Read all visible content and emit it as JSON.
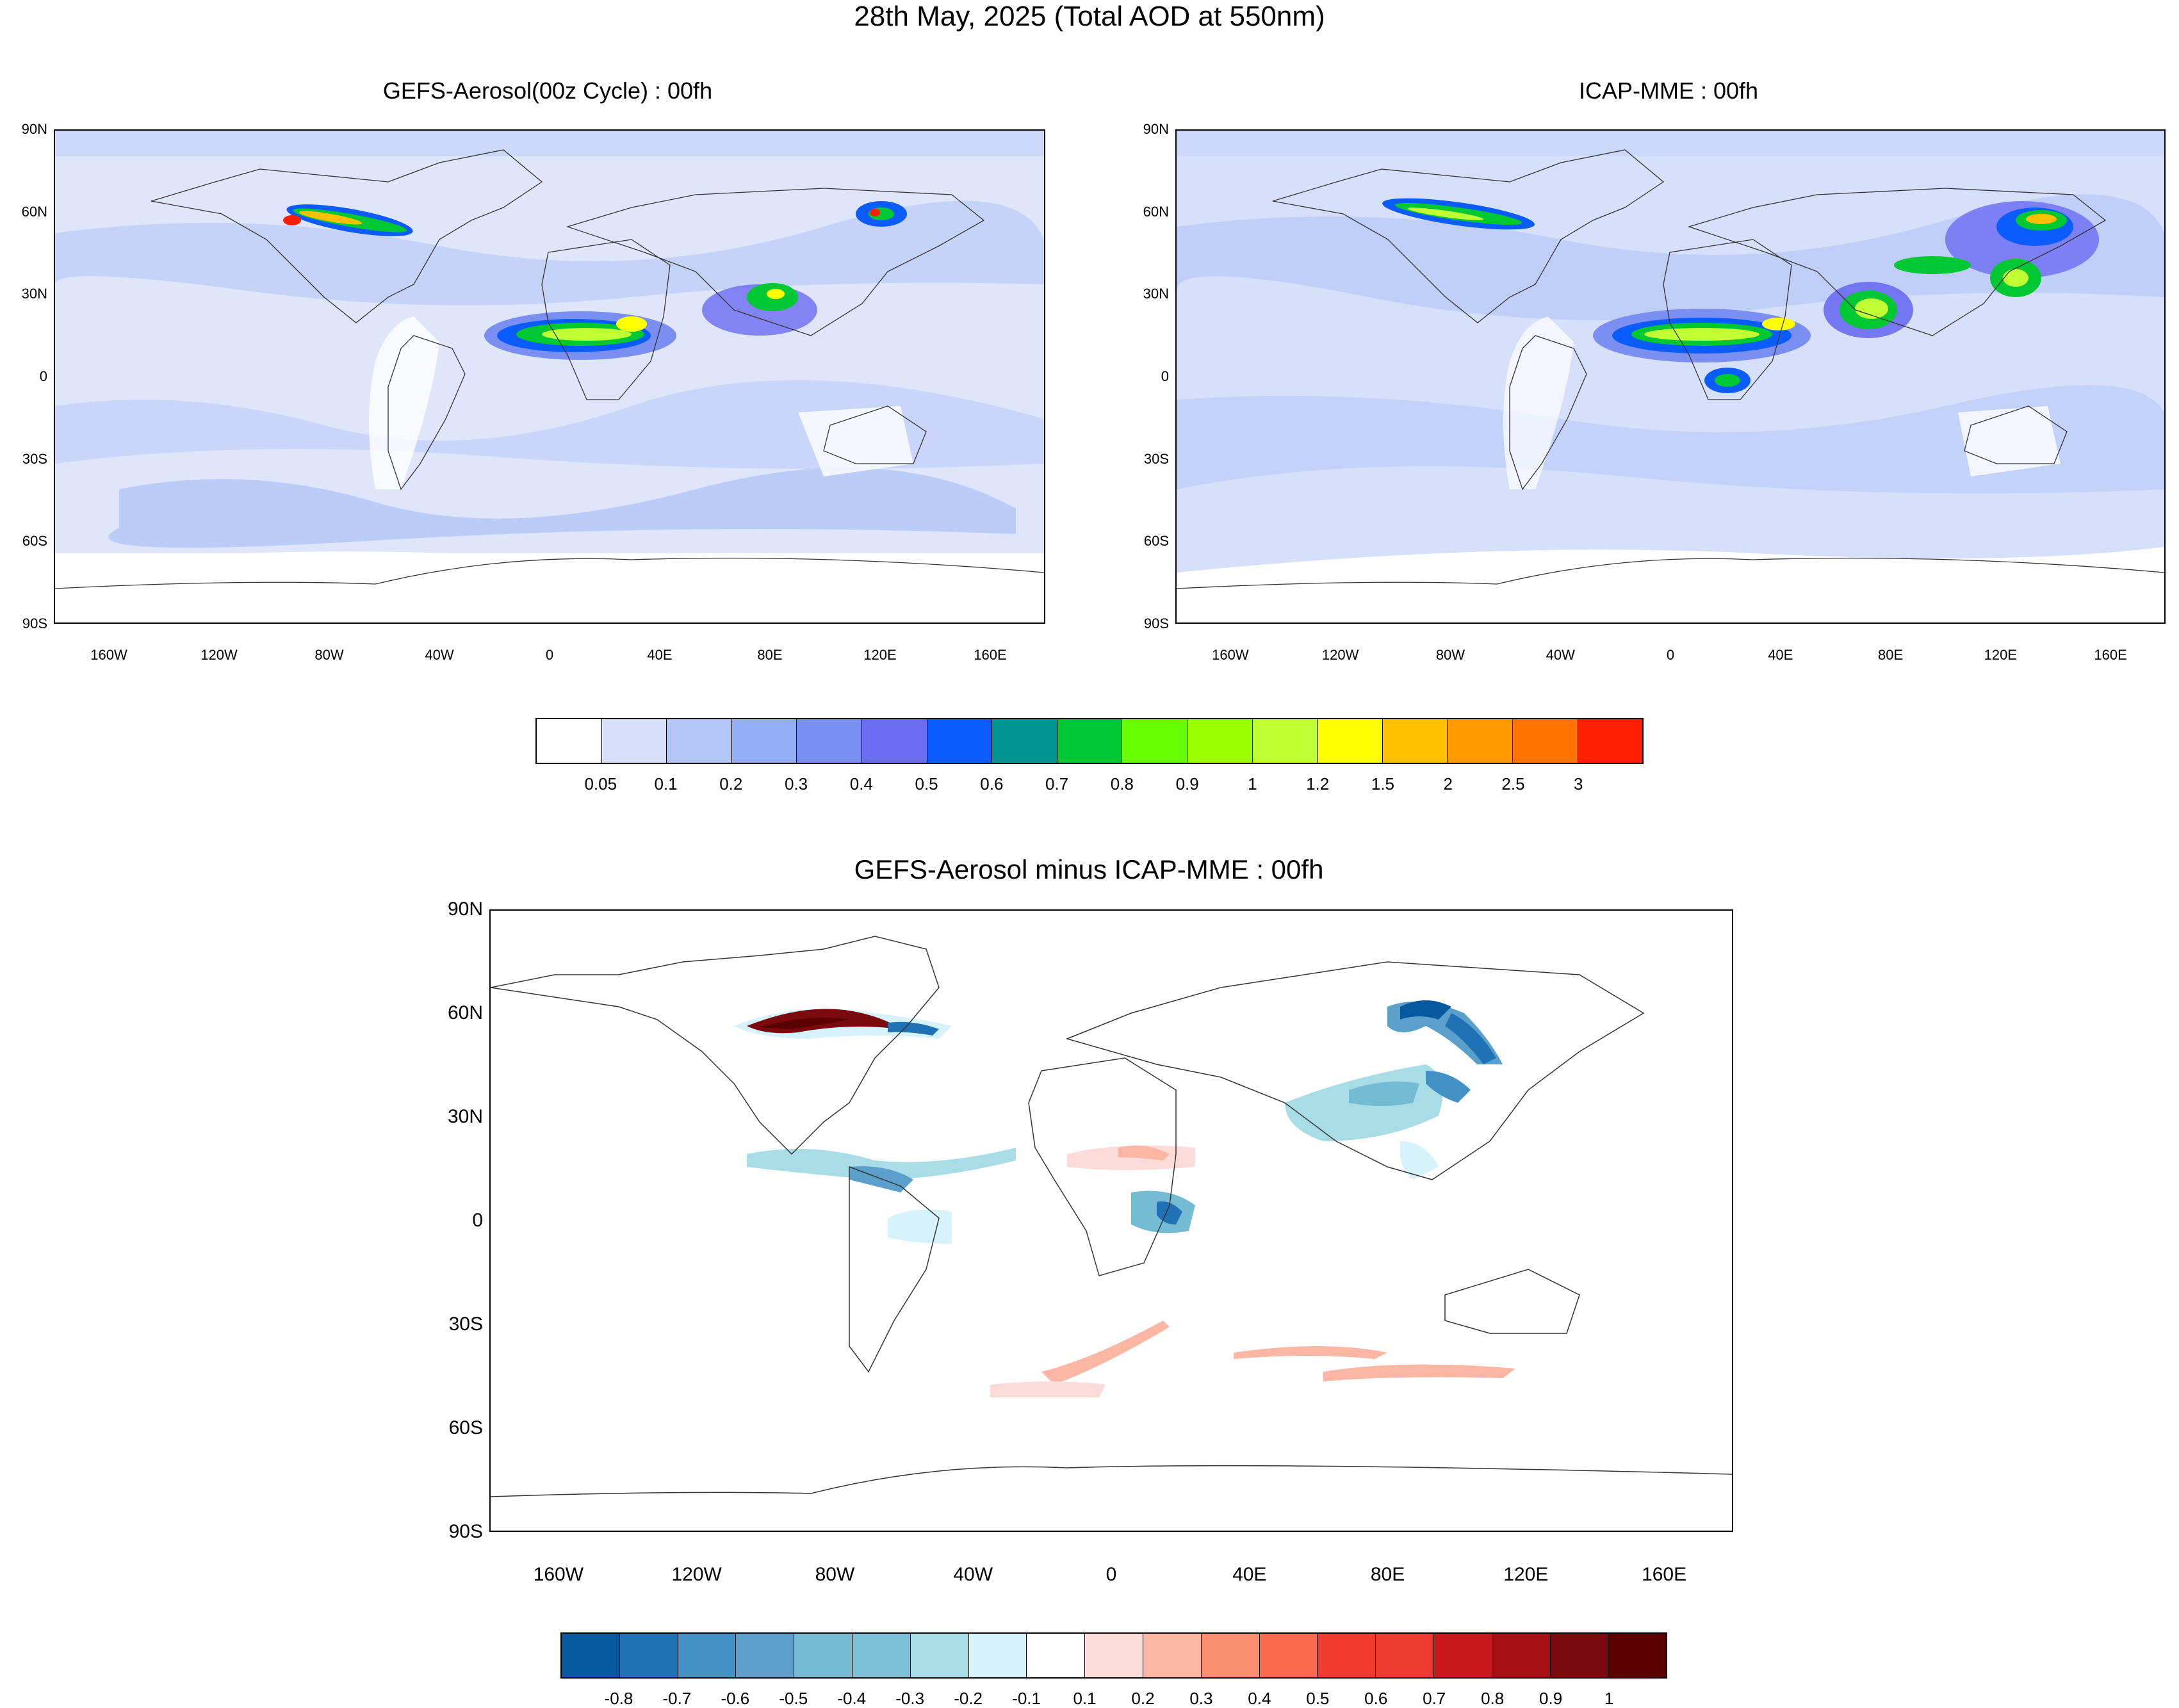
{
  "title": "28th May, 2025 (Total AOD at 550nm)",
  "panels": {
    "gefs": {
      "title": "GEFS-Aerosol(00z Cycle) : 00fh"
    },
    "icap": {
      "title": "ICAP-MME : 00fh"
    },
    "diff": {
      "title": "GEFS-Aerosol minus ICAP-MME : 00fh"
    }
  },
  "axes": {
    "lat_labels": [
      "90N",
      "60N",
      "30N",
      "0",
      "30S",
      "60S",
      "90S"
    ],
    "lon_labels": [
      "160W",
      "120W",
      "80W",
      "40W",
      "0",
      "40E",
      "80E",
      "120E",
      "160E"
    ]
  },
  "colorbar_aod": {
    "labels": [
      "0.05",
      "0.1",
      "0.2",
      "0.3",
      "0.4",
      "0.5",
      "0.6",
      "0.7",
      "0.8",
      "0.9",
      "1",
      "1.2",
      "1.5",
      "2",
      "2.5",
      "3"
    ],
    "colors": [
      "#ffffff",
      "#d6e0fa",
      "#b4c6f7",
      "#93aef5",
      "#7b8ff2",
      "#6a6cf2",
      "#0a5cff",
      "#009494",
      "#00c832",
      "#66ff00",
      "#99ff00",
      "#c0ff33",
      "#ffff00",
      "#ffc000",
      "#ff9a00",
      "#ff7400",
      "#ff1e00"
    ]
  },
  "colorbar_diff": {
    "labels": [
      "-0.8",
      "-0.7",
      "-0.6",
      "-0.5",
      "-0.4",
      "-0.3",
      "-0.2",
      "-0.1",
      "0.1",
      "0.2",
      "0.3",
      "0.4",
      "0.5",
      "0.6",
      "0.7",
      "0.8",
      "0.9",
      "1"
    ],
    "colors": [
      "#08589e",
      "#2171b5",
      "#4292c6",
      "#5aa0cb",
      "#74bbd4",
      "#7ec2d8",
      "#a8dce6",
      "#d6f2fa",
      "#ffffff",
      "#fddbd8",
      "#fbb6a4",
      "#fb9070",
      "#fa6a4a",
      "#ef3b2c",
      "#ec3a30",
      "#cb181d",
      "#a50f15",
      "#7a0a10",
      "#5a0000"
    ]
  }
}
